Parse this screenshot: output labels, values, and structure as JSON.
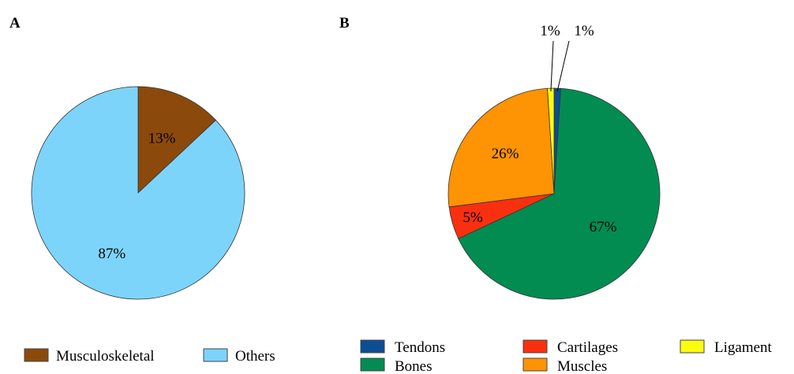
{
  "chart_data": [
    {
      "panel": "A",
      "type": "pie",
      "slices": [
        {
          "name": "Musculoskeletal",
          "value": 13,
          "label": "13%",
          "color": "#8b4a0c"
        },
        {
          "name": "Others",
          "value": 87,
          "label": "87%",
          "color": "#7dd4fb"
        }
      ]
    },
    {
      "panel": "B",
      "type": "pie",
      "slices": [
        {
          "name": "Tendons",
          "value": 1,
          "label": "1%",
          "color": "#0d4d92"
        },
        {
          "name": "Bones",
          "value": 67,
          "label": "67%",
          "color": "#028c52"
        },
        {
          "name": "Cartilages",
          "value": 5,
          "label": "5%",
          "color": "#f9300f"
        },
        {
          "name": "Muscles",
          "value": 26,
          "label": "26%",
          "color": "#fe9304"
        },
        {
          "name": "Ligament",
          "value": 1,
          "label": "1%",
          "color": "#fbfb10"
        }
      ],
      "legend_order": [
        "Tendons",
        "Cartilages",
        "Ligament",
        "Bones",
        "Muscles"
      ]
    }
  ]
}
